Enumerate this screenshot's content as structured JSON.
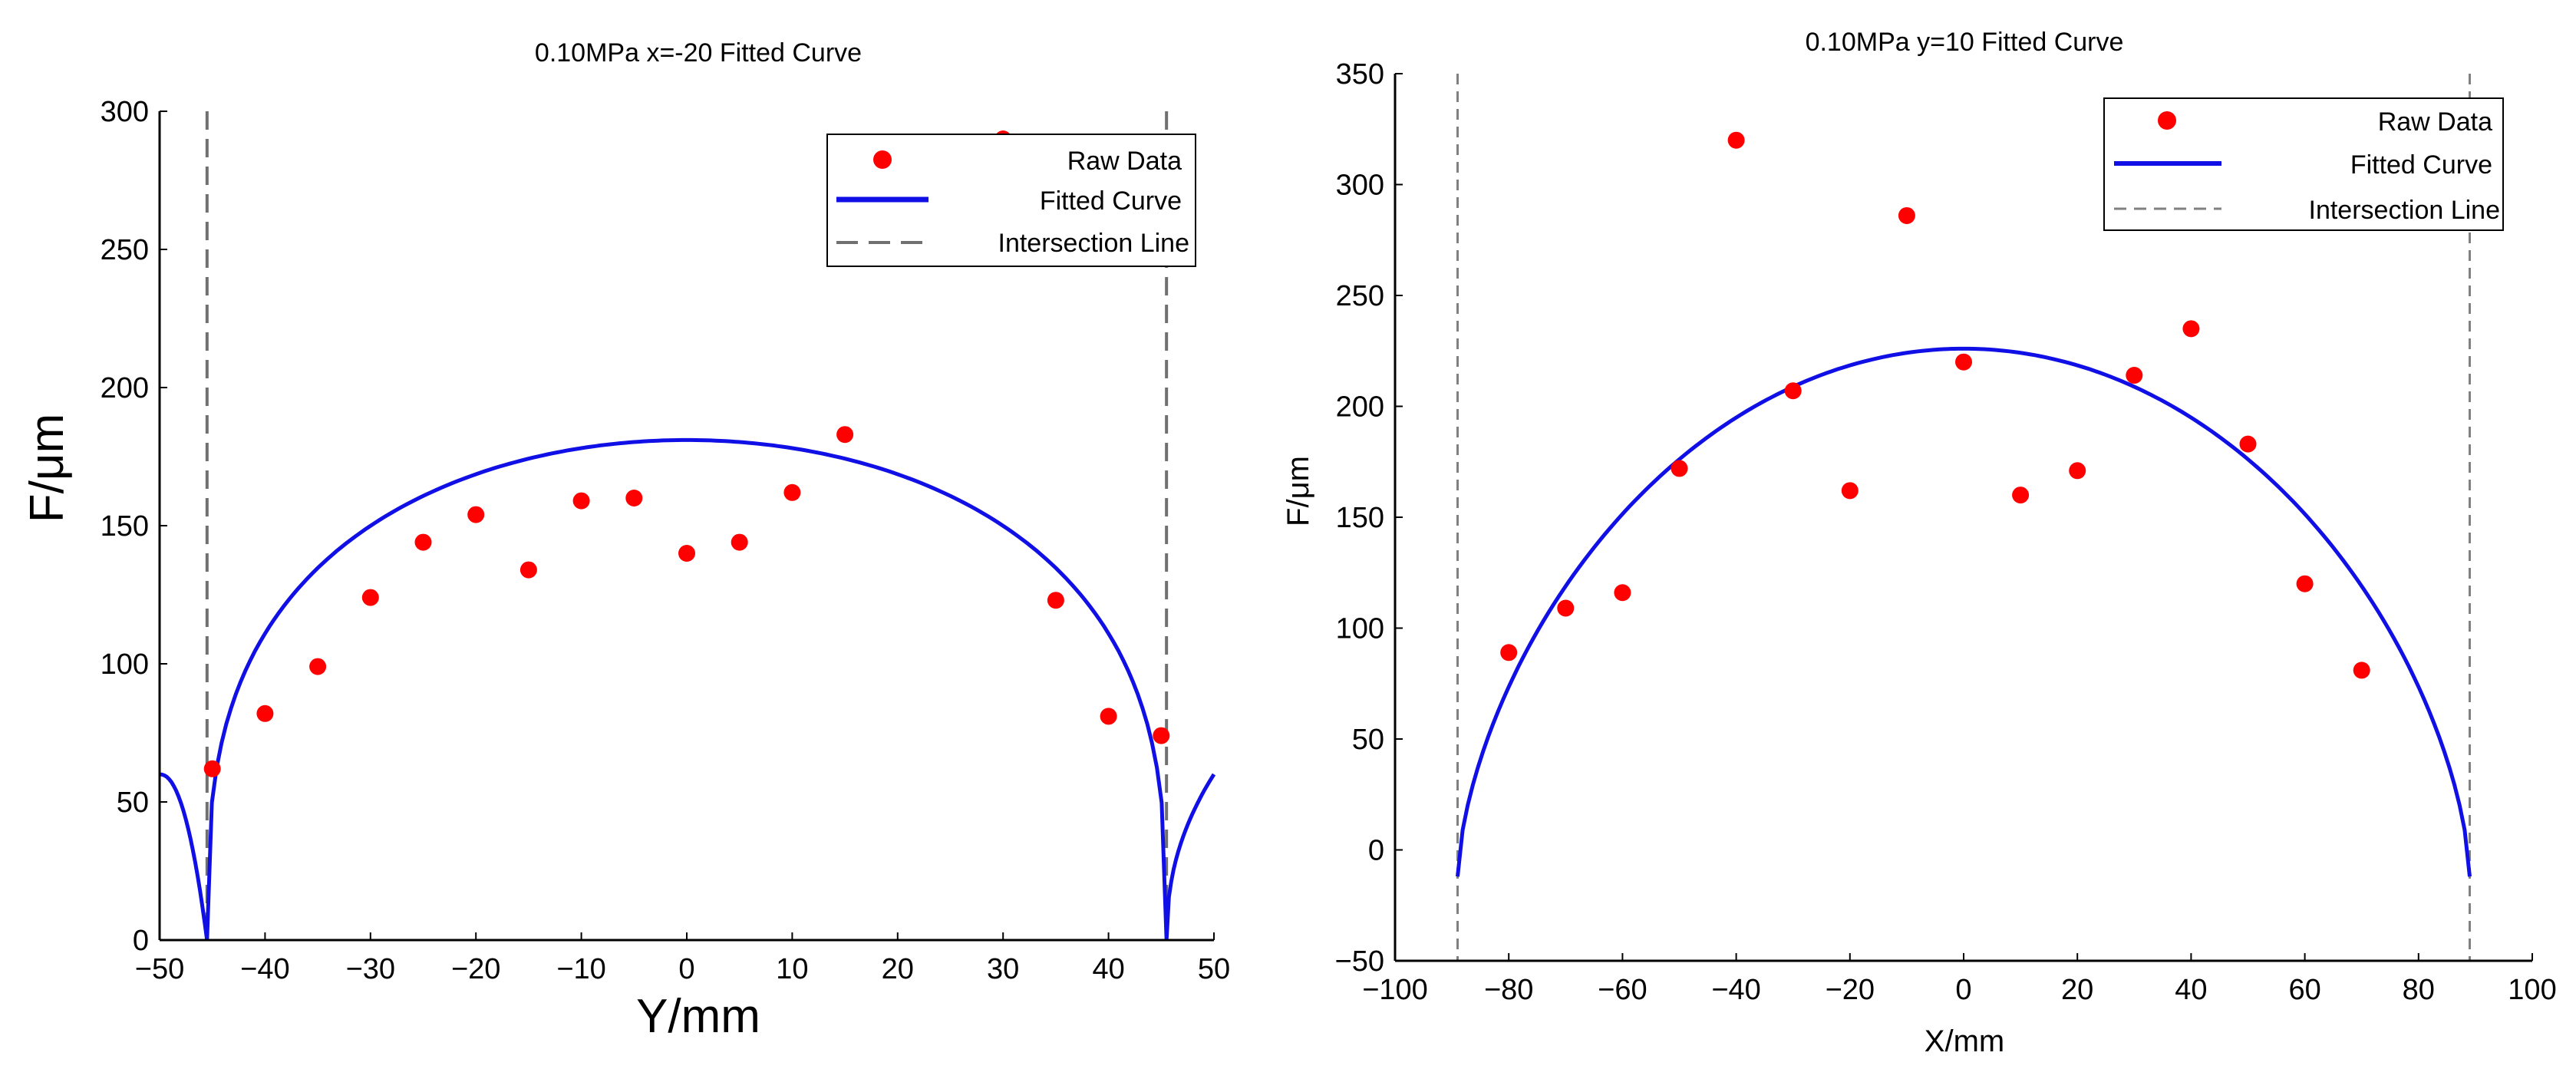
{
  "chart_data": [
    {
      "type": "scatter",
      "title": "0.10MPa x=-20 Fitted Curve",
      "xlabel": "Y/mm",
      "ylabel": "F/μm",
      "xlim": [
        -50,
        50
      ],
      "ylim": [
        0,
        300
      ],
      "xticks": [
        -50,
        -40,
        -30,
        -20,
        -10,
        0,
        10,
        20,
        30,
        40,
        50
      ],
      "xtick_labels": [
        "−50",
        "−40",
        "−30",
        "−20",
        "−10",
        "0",
        "10",
        "20",
        "30",
        "40",
        "50"
      ],
      "yticks": [
        0,
        50,
        100,
        150,
        200,
        250,
        300
      ],
      "ytick_labels": [
        "0",
        "50",
        "100",
        "150",
        "200",
        "250",
        "300"
      ],
      "grid": false,
      "legend_position": "top-right",
      "legend": [
        "Raw Data",
        "Fitted Curve",
        "Intersection Line"
      ],
      "series": [
        {
          "name": "Raw Data",
          "marker": "dot",
          "color": "#ff0000",
          "x": [
            -45,
            -40,
            -35,
            -30,
            -25,
            -20,
            -15,
            -10,
            -5,
            0,
            5,
            10,
            15,
            30,
            35,
            40,
            45
          ],
          "y": [
            62,
            82,
            99,
            124,
            144,
            154,
            134,
            159,
            160,
            140,
            144,
            162,
            183,
            290,
            123,
            81,
            74
          ]
        },
        {
          "name": "Fitted Curve",
          "color": "#1010e6",
          "center_y": 181,
          "half_width": 45.5,
          "outer_x": [
            -50,
            50
          ],
          "outer_y": 60
        },
        {
          "name": "Intersection Line",
          "color": "#707070",
          "x": [
            -45.5,
            45.5
          ]
        }
      ]
    },
    {
      "type": "scatter",
      "title": "0.10MPa y=10 Fitted Curve",
      "xlabel": "X/mm",
      "ylabel": "F/μm",
      "xlim": [
        -100,
        100
      ],
      "ylim": [
        -50,
        350
      ],
      "xticks": [
        -100,
        -80,
        -60,
        -40,
        -20,
        0,
        20,
        40,
        60,
        80,
        100
      ],
      "xtick_labels": [
        "−100",
        "−80",
        "−60",
        "−40",
        "−20",
        "0",
        "20",
        "40",
        "60",
        "80",
        "100"
      ],
      "yticks": [
        -50,
        0,
        50,
        100,
        150,
        200,
        250,
        300,
        350
      ],
      "ytick_labels": [
        "−50",
        "0",
        "50",
        "100",
        "150",
        "200",
        "250",
        "300",
        "350"
      ],
      "grid": false,
      "legend_position": "top-right",
      "legend": [
        "Raw Data",
        "Fitted Curve",
        "Intersection Line"
      ],
      "series": [
        {
          "name": "Raw Data",
          "marker": "dot",
          "color": "#ff0000",
          "x": [
            -80,
            -70,
            -60,
            -50,
            -40,
            -30,
            -20,
            -10,
            0,
            10,
            20,
            30,
            40,
            50,
            60,
            70
          ],
          "y": [
            89,
            109,
            116,
            172,
            320,
            207,
            162,
            286,
            220,
            160,
            171,
            214,
            235,
            183,
            120,
            81
          ]
        },
        {
          "name": "Fitted Curve",
          "color": "#1010e6",
          "peak_y": 226,
          "end_x": [
            -89,
            89
          ],
          "end_y": -12
        },
        {
          "name": "Intersection Line",
          "color": "#808080",
          "x": [
            -89,
            89
          ]
        }
      ]
    }
  ]
}
